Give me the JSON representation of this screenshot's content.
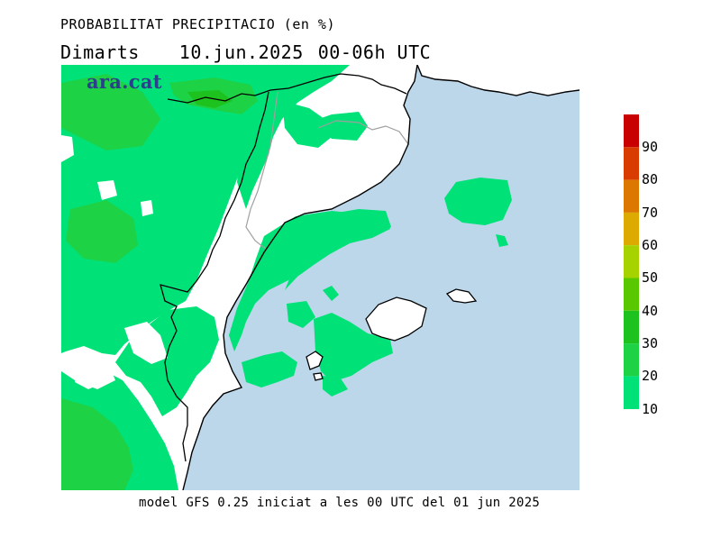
{
  "header": {
    "title": "PROBABILITAT PRECIPITACIO (en %)",
    "day": "Dimarts",
    "date": "10.jun.2025",
    "period": "00-06h UTC"
  },
  "brand": {
    "name": "ara.cat",
    "color": "#2b3f8c"
  },
  "legend": {
    "levels": [
      "90",
      "80",
      "70",
      "60",
      "50",
      "40",
      "30",
      "20",
      "10"
    ],
    "colors": [
      "#c80000",
      "#d93c00",
      "#dc7800",
      "#dcaa00",
      "#a6d200",
      "#5ac800",
      "#1ec21e",
      "#1ed246",
      "#00e178"
    ]
  },
  "map": {
    "sea_color": "#bcd7ea",
    "land_dry_color": "#ffffff",
    "precip_10_color": "#00e178",
    "precip_20_color": "#1ed246",
    "precip_30_color": "#1ec21e",
    "coast_color": "#000000",
    "border_color": "#a0a0a0"
  },
  "footer": {
    "text": "model GFS 0.25 iniciat a les 00 UTC del 01 jun 2025"
  }
}
